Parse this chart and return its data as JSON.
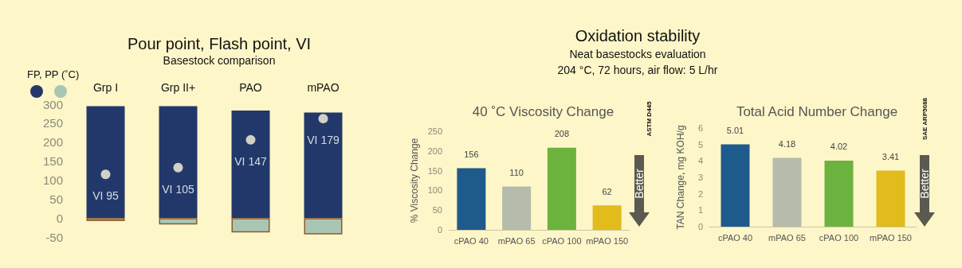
{
  "chart_data": [
    {
      "type": "bar",
      "title": "Pour point, Flash point, VI",
      "subtitle": "Basestock comparison",
      "legend_title": "FP, PP (˚C)",
      "categories": [
        "Grp I",
        "Grp II+",
        "PAO",
        "mPAO"
      ],
      "stacked": true,
      "ylim": [
        -50,
        300
      ],
      "yticks": [
        -50,
        0,
        50,
        100,
        150,
        200,
        250,
        300
      ],
      "grid": false,
      "marker": "circle",
      "series": [
        {
          "color": "#22386a",
          "values": [
            295,
            295,
            283,
            278
          ]
        },
        {
          "color": "#a9c6b4",
          "values": [
            -8,
            -17,
            -38,
            -43
          ]
        },
        {
          "type": "scatter",
          "color": "#fff8dc",
          "values": [
            115,
            133,
            206,
            262
          ],
          "value_labels": [
            "VI 95",
            "VI 105",
            "VI 147",
            "VI 179"
          ]
        }
      ]
    },
    {
      "type": "other",
      "title": "Oxidation stability",
      "subtitle": "Neat basestocks evaluation",
      "annotations": [
        "204 °C, 72 hours, air flow: 5 L/hr"
      ]
    },
    {
      "type": "bar",
      "title": "40 ˚C Viscosity Change",
      "ylabel": "% Viscosity Change",
      "categories": [
        "cPAO 40",
        "mPAO 65",
        "cPAO 100",
        "mPAO 150"
      ],
      "values": [
        156,
        110,
        208,
        62
      ],
      "colors": [
        "#1f5a8c",
        "#b5bcab",
        "#6cb23e",
        "#e2bb1c"
      ],
      "ylim": [
        0,
        250
      ],
      "yticks": [
        0,
        50,
        100,
        150,
        200,
        250
      ],
      "grid": false,
      "data_labels": true,
      "annotations": [
        "ASTM D445",
        "Better"
      ]
    },
    {
      "type": "bar",
      "title": "Total Acid Number Change",
      "ylabel": "TAN Change, mg KOH/g",
      "categories": [
        "cPAO 40",
        "mPAO 65",
        "cPAO 100",
        "mPAO 150"
      ],
      "values": [
        5.01,
        4.18,
        4.02,
        3.41
      ],
      "colors": [
        "#1f5a8c",
        "#b5bcab",
        "#6cb23e",
        "#e2bb1c"
      ],
      "ylim": [
        0,
        6
      ],
      "yticks": [
        0,
        1,
        2,
        3,
        4,
        5,
        6
      ],
      "grid": false,
      "data_labels": true,
      "annotations": [
        "SAE ARP5088",
        "Better"
      ]
    }
  ]
}
